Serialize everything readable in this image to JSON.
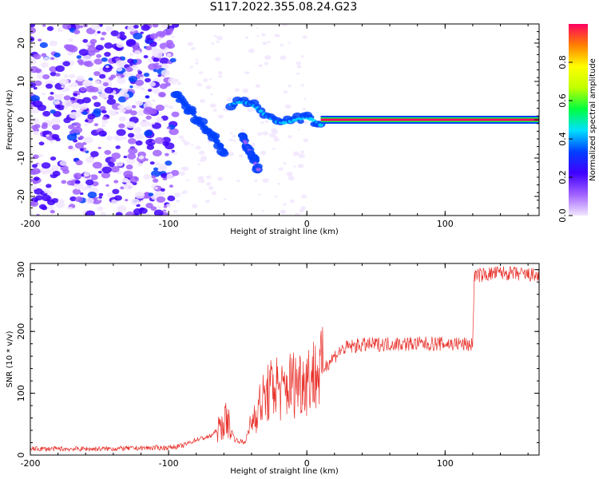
{
  "title": "S117.2022.355.08.24.G23",
  "chart_data": [
    {
      "type": "heatmap",
      "xlabel": "Height of straight line (km)",
      "ylabel": "Frequency (Hz)",
      "xlim": [
        -200,
        168
      ],
      "ylim": [
        -25,
        25
      ],
      "xticks": [
        -200,
        -100,
        0,
        100
      ],
      "xtick_labels": [
        "-200",
        "-100",
        "0",
        "100"
      ],
      "yticks": [
        -20,
        -10,
        0,
        10,
        20
      ],
      "ytick_labels": [
        "-20",
        "-10",
        "0",
        "10",
        "20"
      ],
      "colorbar": {
        "label": "Normalized spectral amplitude",
        "range": [
          0,
          1
        ],
        "ticks": [
          0.0,
          0.2,
          0.4,
          0.6,
          0.8
        ],
        "tick_labels": [
          "0.0",
          "0.2",
          "0.4",
          "0.6",
          "0.8"
        ],
        "colors": [
          "#f2e6ff",
          "#a060ff",
          "#4000ff",
          "#0040ff",
          "#00e0ff",
          "#00ff40",
          "#c0ff00",
          "#ffff00",
          "#ff8000",
          "#ff0060"
        ]
      },
      "features": [
        {
          "x": [
            -200,
            -95
          ],
          "y": [
            -25,
            25
          ],
          "amplitude": 0.1,
          "kind": "noise"
        },
        {
          "x": [
            -95,
            -60
          ],
          "y": [
            -8,
            7
          ],
          "amplitude": 0.35,
          "kind": "descending trace"
        },
        {
          "x": [
            -47,
            -35
          ],
          "y": [
            -13,
            -4
          ],
          "amplitude": 0.15,
          "kind": "branch"
        },
        {
          "x": [
            -55,
            10
          ],
          "y": [
            -2,
            4
          ],
          "amplitude": 0.4,
          "kind": "converging trace"
        },
        {
          "x": [
            10,
            168
          ],
          "y": [
            0,
            0
          ],
          "amplitude": 0.95,
          "kind": "carrier line"
        }
      ],
      "grid": false
    },
    {
      "type": "line",
      "xlabel": "Height of straight line (km)",
      "ylabel": "SNR (10 * v/v)",
      "xlim": [
        -200,
        168
      ],
      "ylim": [
        0,
        310
      ],
      "xticks": [
        -200,
        -100,
        0,
        100
      ],
      "xtick_labels": [
        "-200",
        "-100",
        "0",
        "100"
      ],
      "yticks": [
        0,
        100,
        200,
        300
      ],
      "ytick_labels": [
        "0",
        "100",
        "200",
        "300"
      ],
      "color": "#e8302a",
      "x": [
        -200,
        -150,
        -100,
        -90,
        -80,
        -70,
        -62,
        -58,
        -52,
        -45,
        -38,
        -33,
        -28,
        -22,
        -18,
        -12,
        -5,
        0,
        5,
        10,
        15,
        20,
        25,
        30,
        40,
        60,
        80,
        100,
        110,
        120,
        121,
        140,
        168
      ],
      "y": [
        10,
        10,
        12,
        15,
        25,
        30,
        45,
        60,
        25,
        20,
        65,
        85,
        100,
        115,
        100,
        115,
        120,
        125,
        130,
        135,
        148,
        160,
        170,
        175,
        178,
        180,
        180,
        180,
        180,
        178,
        290,
        295,
        290
      ],
      "grid": false
    }
  ]
}
